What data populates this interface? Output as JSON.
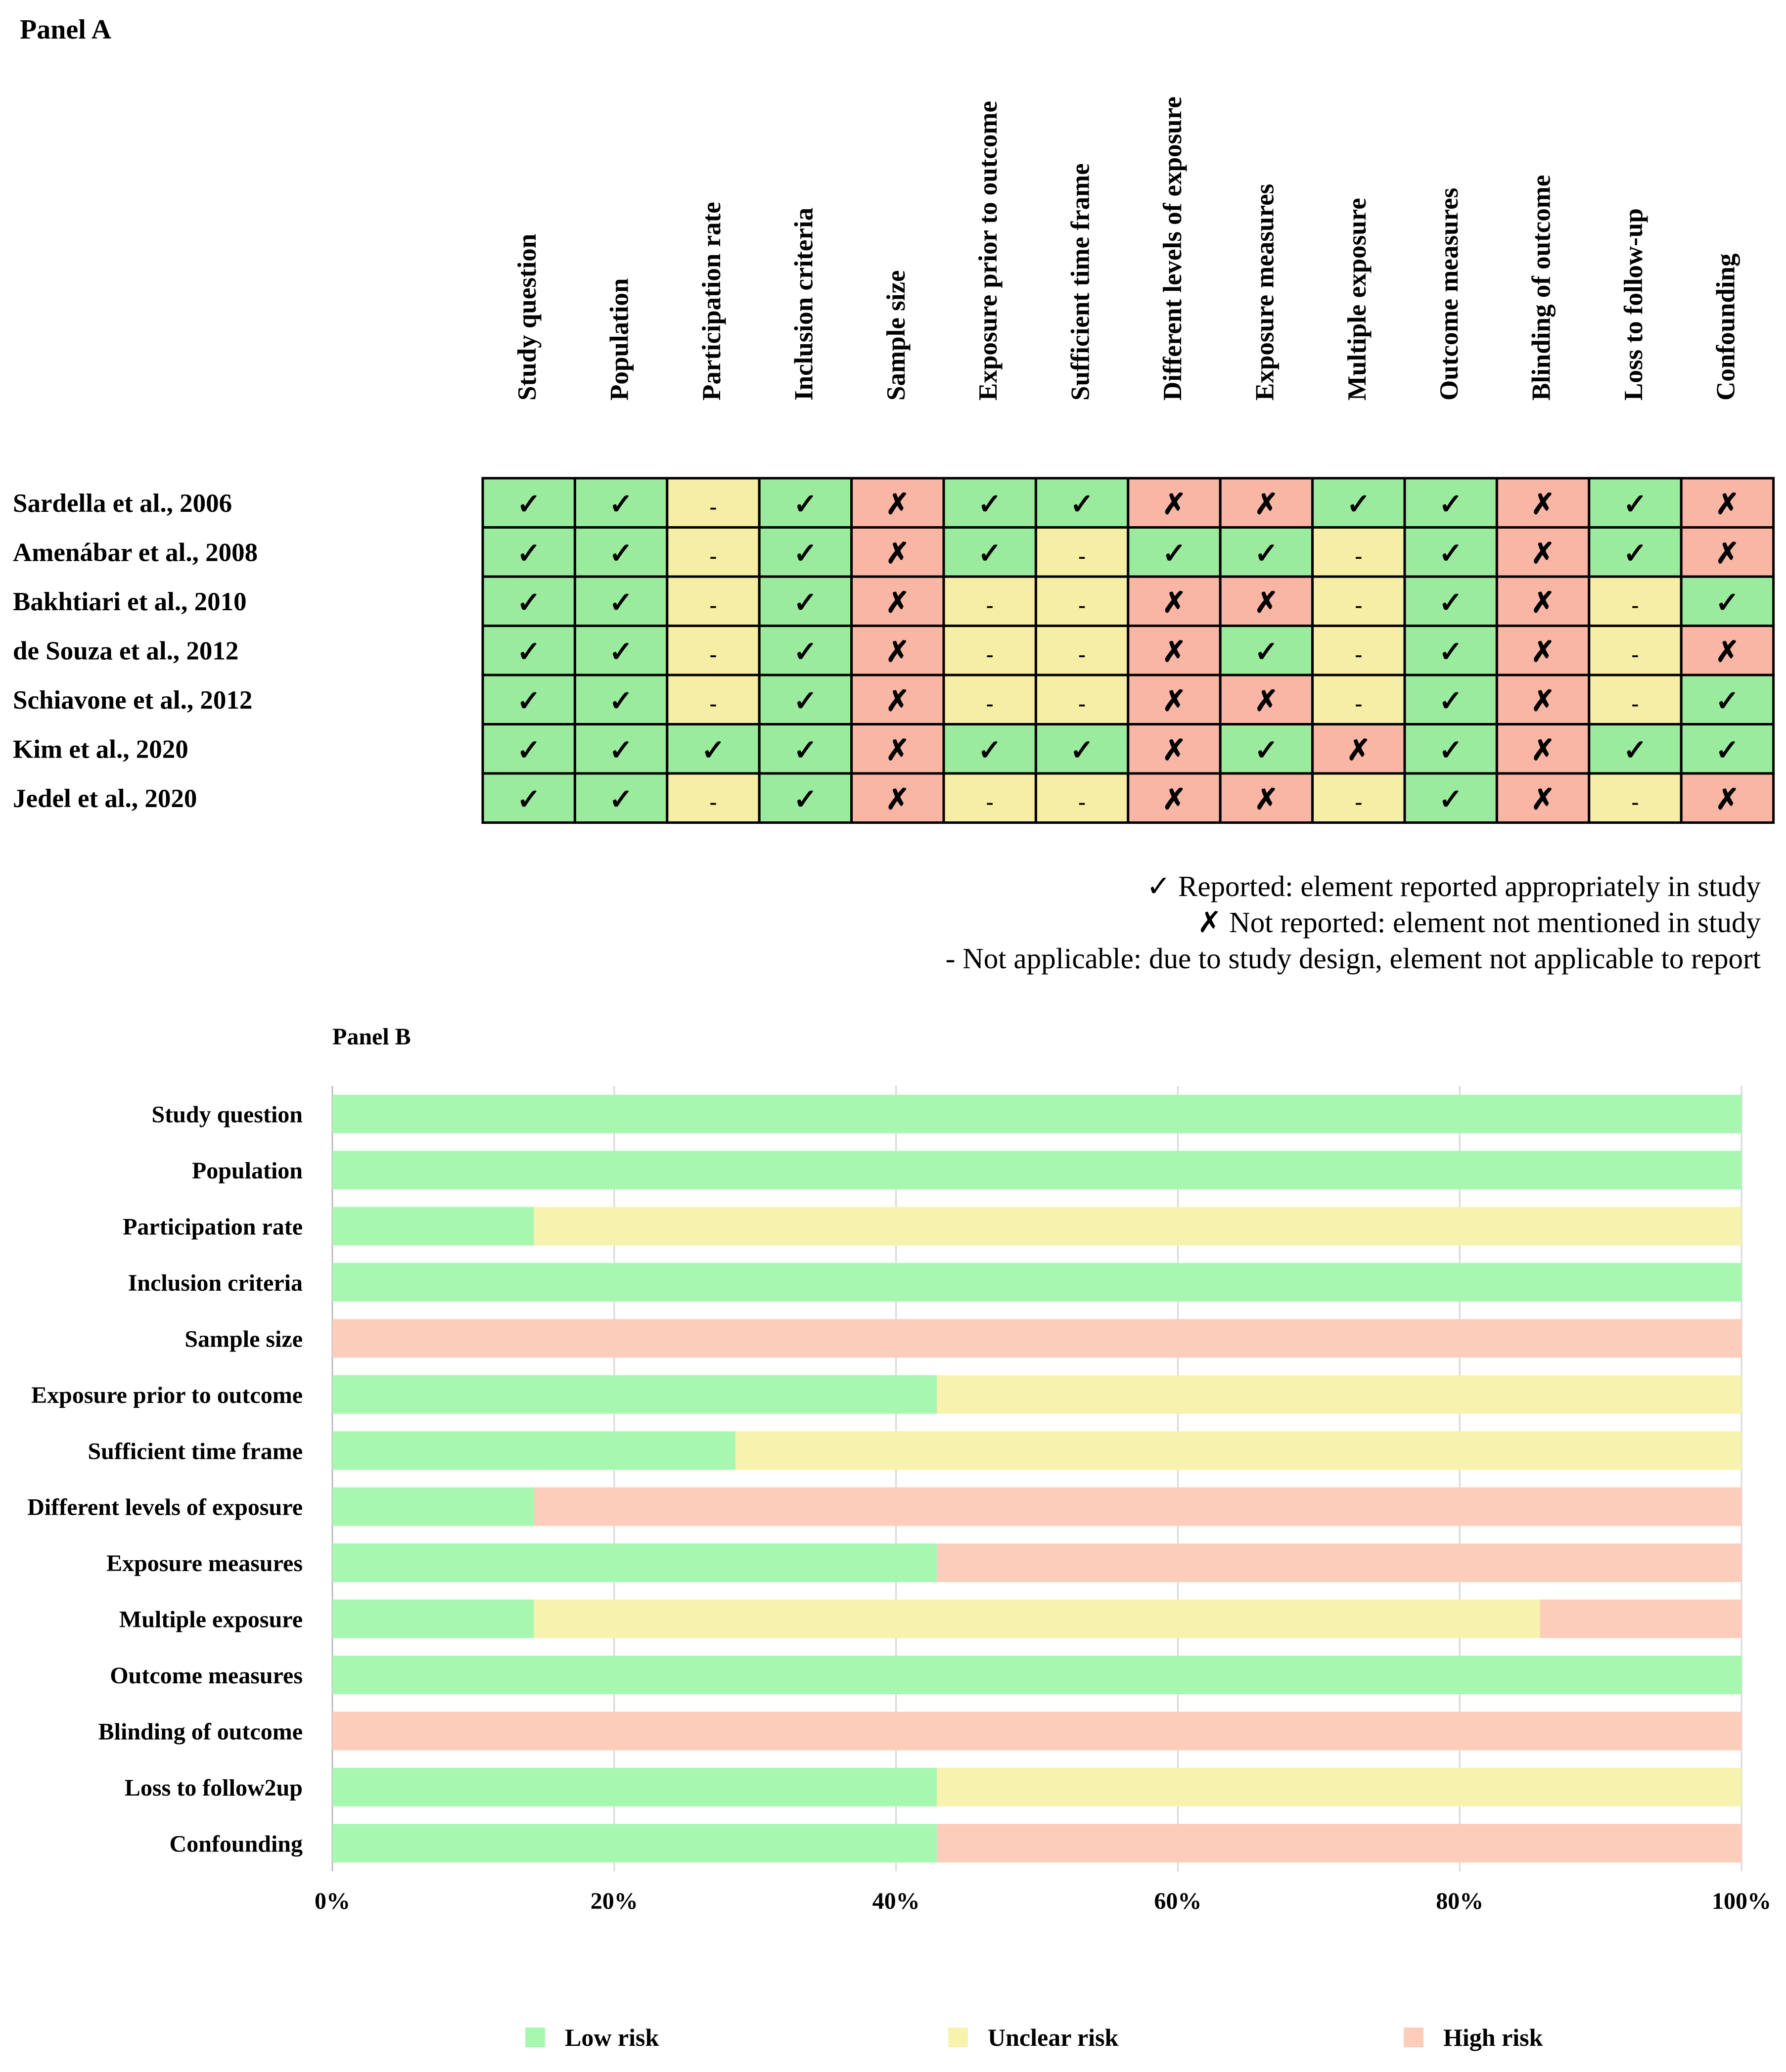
{
  "colors": {
    "low": "#A8F7B1",
    "unclear": "#F7F3AE",
    "high": "#FCCDBA",
    "cell_low": "#9BEB9E",
    "cell_unclear": "#F7EEA6",
    "cell_high": "#F9B6A4",
    "grid": "#000000"
  },
  "panel_a": {
    "title": "Panel A",
    "domains": [
      "Study question",
      "Population",
      "Participation rate",
      "Inclusion criteria",
      "Sample size",
      "Exposure prior to outcome",
      "Sufficient time frame",
      "Different levels of exposure",
      "Exposure measures",
      "Multiple exposure",
      "Outcome measures",
      "Blinding of outcome",
      "Loss to follow-up",
      "Confounding"
    ],
    "studies": [
      {
        "name": "Sardella et al., 2006",
        "marks": [
          "R",
          "R",
          "N",
          "R",
          "X",
          "R",
          "R",
          "X",
          "X",
          "R",
          "R",
          "X",
          "R",
          "X"
        ]
      },
      {
        "name": "Amenábar et al., 2008",
        "marks": [
          "R",
          "R",
          "N",
          "R",
          "X",
          "R",
          "N",
          "R",
          "R",
          "N",
          "R",
          "X",
          "R",
          "X"
        ]
      },
      {
        "name": "Bakhtiari et al., 2010",
        "marks": [
          "R",
          "R",
          "N",
          "R",
          "X",
          "N",
          "N",
          "X",
          "X",
          "N",
          "R",
          "X",
          "N",
          "R"
        ]
      },
      {
        "name": "de Souza et al., 2012",
        "marks": [
          "R",
          "R",
          "N",
          "R",
          "X",
          "N",
          "N",
          "X",
          "R",
          "N",
          "R",
          "X",
          "N",
          "X"
        ]
      },
      {
        "name": "Schiavone et al., 2012",
        "marks": [
          "R",
          "R",
          "N",
          "R",
          "X",
          "N",
          "N",
          "X",
          "X",
          "N",
          "R",
          "X",
          "N",
          "R"
        ]
      },
      {
        "name": "Kim et al., 2020",
        "marks": [
          "R",
          "R",
          "R",
          "R",
          "X",
          "R",
          "R",
          "X",
          "R",
          "X",
          "R",
          "X",
          "R",
          "R"
        ]
      },
      {
        "name": "Jedel et al., 2020",
        "marks": [
          "R",
          "R",
          "N",
          "R",
          "X",
          "N",
          "N",
          "X",
          "X",
          "N",
          "R",
          "X",
          "N",
          "X"
        ]
      }
    ],
    "symbols": {
      "R": "✓",
      "X": "✗",
      "N": "-"
    },
    "legend": [
      "✓ Reported: element reported appropriately in study",
      "✗ Not reported: element not mentioned in study",
      "- Not applicable: due to study design, element not applicable to report"
    ]
  },
  "chart_data": {
    "type": "bar",
    "orientation": "horizontal",
    "stacked": true,
    "title": "Panel B",
    "categories": [
      "Study question",
      "Population",
      "Participation rate",
      "Inclusion criteria",
      "Sample size",
      "Exposure prior to outcome",
      "Sufficient time frame",
      "Different levels of exposure",
      "Exposure measures",
      "Multiple exposure",
      "Outcome measures",
      "Blinding of outcome",
      "Loss to follow2up",
      "Confounding"
    ],
    "series": [
      {
        "name": "Low  risk",
        "color": "#A8F7B1",
        "values": [
          100,
          100,
          14.3,
          100,
          0,
          42.9,
          28.6,
          14.3,
          42.9,
          14.3,
          100,
          0,
          42.9,
          42.9
        ]
      },
      {
        "name": "Unclear risk",
        "color": "#F7F3AE",
        "values": [
          0,
          0,
          85.7,
          0,
          0,
          57.1,
          71.4,
          0,
          0,
          71.4,
          0,
          0,
          57.1,
          0
        ]
      },
      {
        "name": "High risk",
        "color": "#FCCDBA",
        "values": [
          0,
          0,
          0,
          0,
          100,
          0,
          0,
          85.7,
          57.1,
          14.3,
          0,
          100,
          0,
          57.1
        ]
      }
    ],
    "xlim": [
      0,
      100
    ],
    "xticks": [
      "0%",
      "20%",
      "40%",
      "60%",
      "80%",
      "100%"
    ],
    "grid": true,
    "legend_position": "bottom"
  }
}
